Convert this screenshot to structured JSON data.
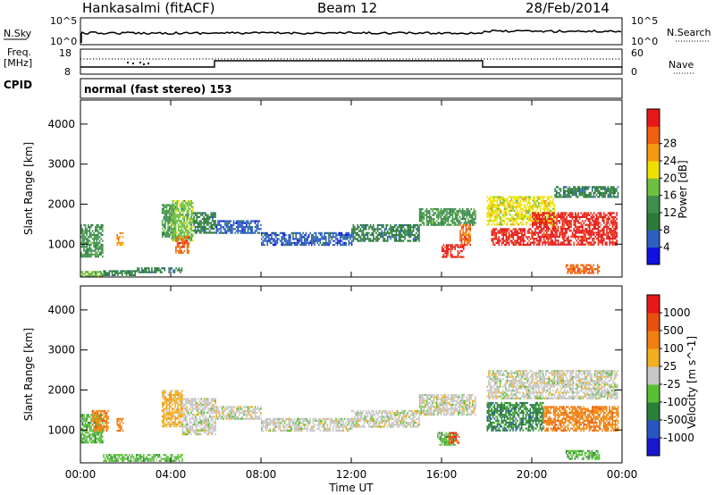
{
  "header": {
    "title": "Hankasalmi (fitACF)",
    "beam": "Beam 12",
    "date": "28/Feb/2014"
  },
  "panels": {
    "nsky": {
      "label": "N.Sky",
      "ticks_left": [
        "10^5",
        "10^0"
      ],
      "right_label": "N.Search",
      "ticks_right": [
        "10^5",
        "10^0"
      ]
    },
    "freq": {
      "label_top": "Freq.",
      "label_unit": "[MHz]",
      "ticks_left": [
        "18",
        "8"
      ],
      "right_label": "Nave",
      "ticks_right": [
        "60",
        "0"
      ],
      "cpid_label": "CPID"
    },
    "cpid": {
      "text": "normal (fast stereo) 153"
    }
  },
  "colors": {
    "power": [
      "#1010e0",
      "#2d5fc0",
      "#2b7a3a",
      "#3f8f4f",
      "#6fc040",
      "#f0e000",
      "#f59a10",
      "#f06010",
      "#e81818"
    ],
    "velocity": [
      "#1818d0",
      "#2a55c0",
      "#2a7f3a",
      "#58c035",
      "#c8c8c8",
      "#f0b020",
      "#f08010",
      "#e85010",
      "#e81818"
    ]
  },
  "chart_data": [
    {
      "type": "heatmap",
      "name": "Power",
      "ylabel": "Slant Range [km]",
      "x_ticks": [
        "00:00",
        "04:00",
        "08:00",
        "12:00",
        "16:00",
        "20:00",
        "00:00"
      ],
      "y_ticks": [
        1000,
        2000,
        3000,
        4000
      ],
      "xlim": [
        0,
        24
      ],
      "ylim": [
        180,
        4600
      ],
      "colorbar": {
        "label": "Power [dB]",
        "ticks": [
          "4",
          "8",
          "12",
          "16",
          "20",
          "24",
          "28"
        ]
      },
      "regions": [
        {
          "x": [
            0.0,
            1.2
          ],
          "y": [
            220,
            330
          ],
          "v": 4
        },
        {
          "x": [
            0.0,
            1.0
          ],
          "y": [
            700,
            1500
          ],
          "v": 3
        },
        {
          "x": [
            1.0,
            2.5
          ],
          "y": [
            250,
            350
          ],
          "v": 2
        },
        {
          "x": [
            2.5,
            4.5
          ],
          "y": [
            280,
            420
          ],
          "v": 2
        },
        {
          "x": [
            1.6,
            1.9
          ],
          "y": [
            1000,
            1300
          ],
          "v": 6
        },
        {
          "x": [
            3.6,
            4.2
          ],
          "y": [
            1200,
            2000
          ],
          "v": 3
        },
        {
          "x": [
            4.0,
            5.0
          ],
          "y": [
            1100,
            2100
          ],
          "v": 4
        },
        {
          "x": [
            4.2,
            4.8
          ],
          "y": [
            800,
            1200
          ],
          "v": 7
        },
        {
          "x": [
            5.0,
            6.0
          ],
          "y": [
            1300,
            1800
          ],
          "v": 2
        },
        {
          "x": [
            6.0,
            8.0
          ],
          "y": [
            1300,
            1600
          ],
          "v": 1
        },
        {
          "x": [
            8.0,
            12.0
          ],
          "y": [
            1000,
            1300
          ],
          "v": 1
        },
        {
          "x": [
            12.0,
            15.0
          ],
          "y": [
            1100,
            1500
          ],
          "v": 2
        },
        {
          "x": [
            15.0,
            17.5
          ],
          "y": [
            1500,
            1900
          ],
          "v": 3
        },
        {
          "x": [
            16.0,
            17.0
          ],
          "y": [
            700,
            1000
          ],
          "v": 8
        },
        {
          "x": [
            16.8,
            17.3
          ],
          "y": [
            1000,
            1500
          ],
          "v": 7
        },
        {
          "x": [
            18.0,
            21.0
          ],
          "y": [
            1500,
            2200
          ],
          "v": 5
        },
        {
          "x": [
            18.2,
            20.0
          ],
          "y": [
            1000,
            1400
          ],
          "v": 8
        },
        {
          "x": [
            20.0,
            23.8
          ],
          "y": [
            1000,
            1800
          ],
          "v": 8
        },
        {
          "x": [
            21.0,
            23.8
          ],
          "y": [
            2200,
            2450
          ],
          "v": 2
        },
        {
          "x": [
            21.5,
            23.0
          ],
          "y": [
            300,
            500
          ],
          "v": 7
        }
      ]
    },
    {
      "type": "heatmap",
      "name": "Velocity",
      "ylabel": "Slant Range [km]",
      "xlabel": "Time UT",
      "x_ticks": [
        "00:00",
        "04:00",
        "08:00",
        "12:00",
        "16:00",
        "20:00",
        "00:00"
      ],
      "y_ticks": [
        1000,
        2000,
        3000,
        4000
      ],
      "xlim": [
        0,
        24
      ],
      "ylim": [
        180,
        4600
      ],
      "colorbar": {
        "label": "Velocity [m s^-1]",
        "ticks": [
          "1000",
          "500",
          "100",
          "25",
          "-25",
          "-100",
          "-500",
          "-1000"
        ]
      },
      "regions": [
        {
          "x": [
            0.0,
            1.0
          ],
          "y": [
            700,
            1400
          ],
          "v": 3
        },
        {
          "x": [
            0.5,
            1.2
          ],
          "y": [
            1000,
            1500
          ],
          "v": 6
        },
        {
          "x": [
            1.0,
            4.5
          ],
          "y": [
            250,
            400
          ],
          "v": 3
        },
        {
          "x": [
            1.6,
            1.9
          ],
          "y": [
            1000,
            1300
          ],
          "v": 6
        },
        {
          "x": [
            3.6,
            4.5
          ],
          "y": [
            1100,
            2000
          ],
          "v": 5
        },
        {
          "x": [
            4.5,
            6.0
          ],
          "y": [
            900,
            1800
          ],
          "v": 4
        },
        {
          "x": [
            6.0,
            8.0
          ],
          "y": [
            1300,
            1600
          ],
          "v": 4
        },
        {
          "x": [
            8.0,
            12.0
          ],
          "y": [
            1000,
            1300
          ],
          "v": 4
        },
        {
          "x": [
            12.0,
            15.0
          ],
          "y": [
            1100,
            1500
          ],
          "v": 4
        },
        {
          "x": [
            15.0,
            17.5
          ],
          "y": [
            1400,
            1900
          ],
          "v": 4
        },
        {
          "x": [
            15.8,
            16.6
          ],
          "y": [
            650,
            950
          ],
          "v": 3
        },
        {
          "x": [
            16.3,
            16.8
          ],
          "y": [
            700,
            950
          ],
          "v": 7
        },
        {
          "x": [
            18.0,
            20.5
          ],
          "y": [
            1000,
            1700
          ],
          "v": 2
        },
        {
          "x": [
            20.5,
            23.8
          ],
          "y": [
            1000,
            1600
          ],
          "v": 6
        },
        {
          "x": [
            18.0,
            23.8
          ],
          "y": [
            1800,
            2500
          ],
          "v": 4
        },
        {
          "x": [
            21.5,
            23.0
          ],
          "y": [
            300,
            500
          ],
          "v": 3
        }
      ]
    }
  ]
}
